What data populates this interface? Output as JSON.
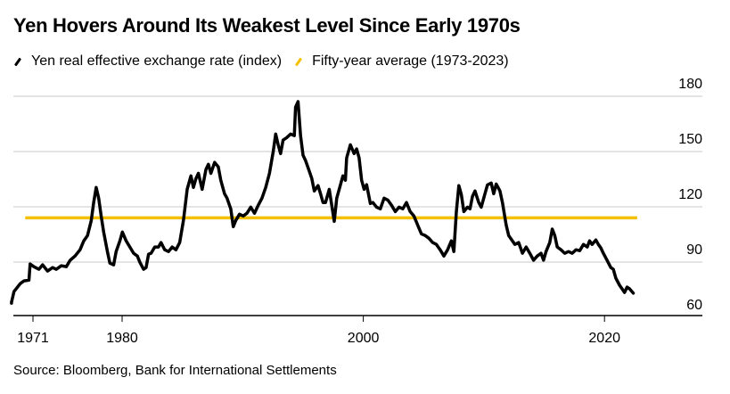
{
  "chart_data": {
    "type": "line",
    "title": "Yen Hovers Around Its Weakest Level Since Early 1970s",
    "xlabel": "",
    "ylabel": "",
    "ylim": [
      60,
      180
    ],
    "xlim": [
      1971,
      2024
    ],
    "grid": true,
    "legend_position": "top-left",
    "x_ticks": [
      1971,
      1980,
      2000,
      2020
    ],
    "x_tick_labels": [
      "1971",
      "1980",
      "2000",
      "2020"
    ],
    "y_ticks": [
      60,
      90,
      120,
      150,
      180
    ],
    "y_tick_labels": [
      "60",
      "90",
      "120",
      "150",
      "180"
    ],
    "y_axis_side": "right",
    "source": "Source: Bloomberg, Bank for International Settlements",
    "series": [
      {
        "name": "Yen real effective exchange rate (index)",
        "color": "#000000",
        "points": [
          [
            1972.6,
            67.7
          ],
          [
            1972.6,
            68.2
          ],
          [
            1972.8,
            74.0
          ],
          [
            1973.3,
            78.3
          ],
          [
            1973.6,
            79.8
          ],
          [
            1974.0,
            80.2
          ],
          [
            1974.1,
            89.0
          ],
          [
            1974.4,
            87.5
          ],
          [
            1974.8,
            86.1
          ],
          [
            1975.1,
            88.5
          ],
          [
            1975.5,
            85.1
          ],
          [
            1975.9,
            87.0
          ],
          [
            1976.2,
            86.1
          ],
          [
            1976.6,
            88.0
          ],
          [
            1977.0,
            87.5
          ],
          [
            1977.3,
            90.9
          ],
          [
            1977.7,
            93.3
          ],
          [
            1978.1,
            96.7
          ],
          [
            1978.4,
            101.5
          ],
          [
            1978.7,
            104.4
          ],
          [
            1979.0,
            112.6
          ],
          [
            1979.2,
            122.3
          ],
          [
            1979.4,
            130.5
          ],
          [
            1979.6,
            124.7
          ],
          [
            1979.8,
            115.0
          ],
          [
            1980.0,
            106.3
          ],
          [
            1980.3,
            95.7
          ],
          [
            1980.5,
            89.4
          ],
          [
            1980.8,
            88.5
          ],
          [
            1981.0,
            95.7
          ],
          [
            1981.3,
            101.5
          ],
          [
            1981.5,
            106.3
          ],
          [
            1981.8,
            101.5
          ],
          [
            1982.1,
            98.2
          ],
          [
            1982.4,
            94.8
          ],
          [
            1982.7,
            93.3
          ],
          [
            1982.9,
            89.9
          ],
          [
            1983.2,
            86.1
          ],
          [
            1983.4,
            87.0
          ],
          [
            1983.6,
            94.3
          ],
          [
            1983.8,
            94.8
          ],
          [
            1984.1,
            98.2
          ],
          [
            1984.4,
            98.2
          ],
          [
            1984.6,
            100.6
          ],
          [
            1984.9,
            96.7
          ],
          [
            1985.2,
            95.7
          ],
          [
            1985.5,
            98.2
          ],
          [
            1985.8,
            96.7
          ],
          [
            1986.1,
            100.6
          ],
          [
            1986.4,
            112.6
          ],
          [
            1986.7,
            129.5
          ],
          [
            1987.0,
            136.8
          ],
          [
            1987.2,
            130.5
          ],
          [
            1987.4,
            135.3
          ],
          [
            1987.6,
            138.2
          ],
          [
            1987.9,
            129.5
          ],
          [
            1988.2,
            140.2
          ],
          [
            1988.4,
            143.1
          ],
          [
            1988.6,
            138.2
          ],
          [
            1988.9,
            144.1
          ],
          [
            1989.2,
            141.7
          ],
          [
            1989.4,
            134.4
          ],
          [
            1989.7,
            127.1
          ],
          [
            1989.9,
            124.7
          ],
          [
            1990.2,
            118.9
          ],
          [
            1990.4,
            109.2
          ],
          [
            1990.6,
            112.6
          ],
          [
            1990.9,
            116.0
          ],
          [
            1991.2,
            115.0
          ],
          [
            1991.5,
            116.5
          ],
          [
            1991.8,
            119.8
          ],
          [
            1992.1,
            116.5
          ],
          [
            1992.4,
            120.8
          ],
          [
            1992.7,
            124.7
          ],
          [
            1993.0,
            130.5
          ],
          [
            1993.3,
            138.2
          ],
          [
            1993.6,
            149.9
          ],
          [
            1993.8,
            159.5
          ],
          [
            1994.0,
            153.7
          ],
          [
            1994.2,
            148.9
          ],
          [
            1994.4,
            156.2
          ],
          [
            1994.7,
            157.6
          ],
          [
            1995.0,
            159.5
          ],
          [
            1995.3,
            158.6
          ],
          [
            1995.4,
            174.1
          ],
          [
            1995.6,
            177.1
          ],
          [
            1995.8,
            158.6
          ],
          [
            1996.0,
            148.0
          ],
          [
            1996.2,
            145.1
          ],
          [
            1996.5,
            139.3
          ],
          [
            1996.7,
            135.4
          ],
          [
            1996.9,
            128.6
          ],
          [
            1997.2,
            131.5
          ],
          [
            1997.4,
            127.1
          ],
          [
            1997.6,
            122.3
          ],
          [
            1997.8,
            122.3
          ],
          [
            1998.1,
            129.5
          ],
          [
            1998.3,
            120.8
          ],
          [
            1998.5,
            112.1
          ],
          [
            1998.7,
            124.7
          ],
          [
            1999.0,
            132.0
          ],
          [
            1999.2,
            136.8
          ],
          [
            1999.4,
            134.4
          ],
          [
            1999.5,
            146.5
          ],
          [
            1999.8,
            153.7
          ],
          [
            2000.1,
            148.9
          ],
          [
            2000.3,
            151.4
          ],
          [
            2000.5,
            146.5
          ],
          [
            2000.7,
            134.4
          ],
          [
            2000.9,
            129.5
          ],
          [
            2001.1,
            132.0
          ],
          [
            2001.4,
            121.8
          ],
          [
            2001.6,
            122.3
          ],
          [
            2001.9,
            119.8
          ],
          [
            2002.2,
            118.9
          ],
          [
            2002.5,
            124.7
          ],
          [
            2002.8,
            123.7
          ],
          [
            2003.1,
            120.8
          ],
          [
            2003.4,
            117.4
          ],
          [
            2003.7,
            119.8
          ],
          [
            2004.0,
            118.9
          ],
          [
            2004.3,
            122.3
          ],
          [
            2004.6,
            117.4
          ],
          [
            2004.9,
            115.0
          ],
          [
            2005.2,
            110.1
          ],
          [
            2005.5,
            105.3
          ],
          [
            2005.8,
            104.4
          ],
          [
            2006.1,
            102.9
          ],
          [
            2006.4,
            100.6
          ],
          [
            2006.7,
            99.6
          ],
          [
            2007.0,
            96.7
          ],
          [
            2007.3,
            93.3
          ],
          [
            2007.6,
            96.7
          ],
          [
            2007.9,
            101.5
          ],
          [
            2008.1,
            95.7
          ],
          [
            2008.3,
            117.4
          ],
          [
            2008.5,
            131.5
          ],
          [
            2008.7,
            126.6
          ],
          [
            2008.9,
            117.4
          ],
          [
            2009.2,
            119.8
          ],
          [
            2009.4,
            118.9
          ],
          [
            2009.6,
            125.7
          ],
          [
            2009.8,
            128.6
          ],
          [
            2010.1,
            122.3
          ],
          [
            2010.3,
            119.8
          ],
          [
            2010.6,
            127.1
          ],
          [
            2010.8,
            131.9
          ],
          [
            2011.1,
            132.9
          ],
          [
            2011.3,
            127.1
          ],
          [
            2011.5,
            132.4
          ],
          [
            2011.8,
            128.6
          ],
          [
            2012.0,
            122.3
          ],
          [
            2012.3,
            110.1
          ],
          [
            2012.5,
            104.4
          ],
          [
            2012.8,
            101.5
          ],
          [
            2013.0,
            99.6
          ],
          [
            2013.3,
            100.6
          ],
          [
            2013.6,
            94.8
          ],
          [
            2013.9,
            98.2
          ],
          [
            2014.2,
            94.8
          ],
          [
            2014.5,
            91.0
          ],
          [
            2014.8,
            93.3
          ],
          [
            2015.1,
            94.8
          ],
          [
            2015.3,
            91.0
          ],
          [
            2015.5,
            95.7
          ],
          [
            2015.8,
            100.6
          ],
          [
            2016.0,
            107.9
          ],
          [
            2016.2,
            104.4
          ],
          [
            2016.4,
            98.2
          ],
          [
            2016.7,
            96.7
          ],
          [
            2017.0,
            94.8
          ],
          [
            2017.3,
            95.7
          ],
          [
            2017.6,
            94.8
          ],
          [
            2017.9,
            96.7
          ],
          [
            2018.2,
            96.2
          ],
          [
            2018.5,
            99.6
          ],
          [
            2018.8,
            98.2
          ],
          [
            2019.0,
            101.5
          ],
          [
            2019.2,
            99.6
          ],
          [
            2019.5,
            102.0
          ],
          [
            2019.7,
            99.6
          ],
          [
            2019.9,
            97.7
          ],
          [
            2020.1,
            94.8
          ],
          [
            2020.4,
            90.9
          ],
          [
            2020.7,
            87.0
          ],
          [
            2020.9,
            86.1
          ],
          [
            2021.1,
            81.3
          ],
          [
            2021.4,
            77.4
          ],
          [
            2021.6,
            75.5
          ],
          [
            2021.8,
            73.5
          ],
          [
            2022.0,
            76.4
          ],
          [
            2022.2,
            75.5
          ],
          [
            2022.5,
            73.1
          ]
        ]
      },
      {
        "name": "Fifty-year average (1973-2023)",
        "color": "#F5C000",
        "points": [
          [
            1973.0,
            114.0
          ],
          [
            2023.0,
            114.0
          ]
        ]
      }
    ]
  }
}
